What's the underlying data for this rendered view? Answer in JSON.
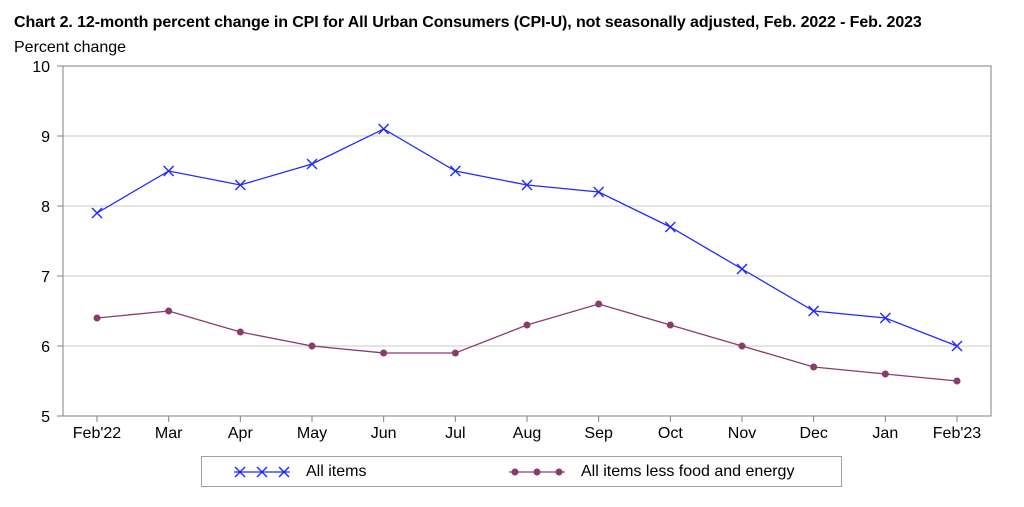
{
  "title": "Chart 2. 12-month percent change in CPI for All Urban Consumers (CPI-U), not seasonally adjusted, Feb. 2022 - Feb. 2023",
  "colors": {
    "all_items": "#1f2bff",
    "core": "#8a3b6e",
    "grid": "#c8c8c8",
    "axis": "#808080"
  },
  "chart_data": {
    "type": "line",
    "title": "Chart 2. 12-month percent change in CPI for All Urban Consumers (CPI-U), not seasonally adjusted, Feb. 2022 - Feb. 2023",
    "xlabel": "",
    "ylabel": "Percent change",
    "categories": [
      "Feb'22",
      "Mar",
      "Apr",
      "May",
      "Jun",
      "Jul",
      "Aug",
      "Sep",
      "Oct",
      "Nov",
      "Dec",
      "Jan",
      "Feb'23"
    ],
    "ylim": [
      5,
      10
    ],
    "yticks": [
      5,
      6,
      7,
      8,
      9,
      10
    ],
    "grid": true,
    "legend_position": "bottom",
    "series": [
      {
        "name": "All items",
        "marker": "x",
        "color": "#1f2bff",
        "values": [
          7.9,
          8.5,
          8.3,
          8.6,
          9.1,
          8.5,
          8.3,
          8.2,
          7.7,
          7.1,
          6.5,
          6.4,
          6.0
        ]
      },
      {
        "name": "All items less food and energy",
        "marker": "dot",
        "color": "#8a3b6e",
        "values": [
          6.4,
          6.5,
          6.2,
          6.0,
          5.9,
          5.9,
          6.3,
          6.6,
          6.3,
          6.0,
          5.7,
          5.6,
          5.5
        ]
      }
    ]
  }
}
